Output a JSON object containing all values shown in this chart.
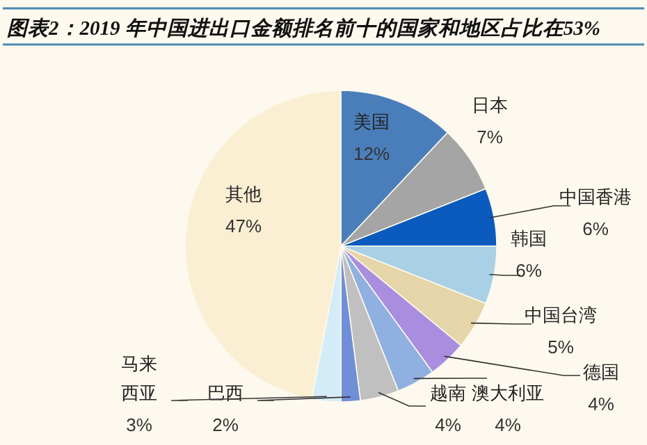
{
  "chart_data": {
    "type": "pie",
    "title": "图表2：2019 年中国进出口金额排名前十的国家和地区占比在53%",
    "categories": [
      "美国",
      "日本",
      "中国香港",
      "韩国",
      "中国台湾",
      "德国",
      "澳大利亚",
      "越南",
      "巴西",
      "马来西亚",
      "其他"
    ],
    "values": [
      12,
      7,
      6,
      6,
      5,
      4,
      4,
      4,
      2,
      3,
      47
    ],
    "colors": [
      "#4a7ebb",
      "#a5a5a5",
      "#0a5bbd",
      "#a9d0e4",
      "#e5d5a8",
      "#a98ee0",
      "#8fb0e0",
      "#c0c0c0",
      "#6f8fd8",
      "#d4ecf7",
      "#fbefd3"
    ],
    "value_labels": [
      "12%",
      "7%",
      "6%",
      "6%",
      "5%",
      "4%",
      "4%",
      "4%",
      "2%",
      "3%",
      "47%"
    ],
    "legend": false
  }
}
